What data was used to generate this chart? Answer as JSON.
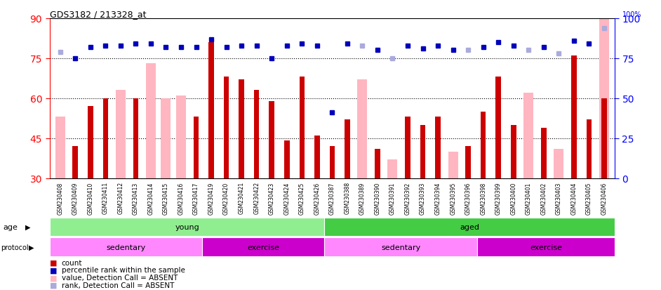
{
  "title": "GDS3182 / 213328_at",
  "samples": [
    "GSM230408",
    "GSM230409",
    "GSM230410",
    "GSM230411",
    "GSM230412",
    "GSM230413",
    "GSM230414",
    "GSM230415",
    "GSM230416",
    "GSM230417",
    "GSM230419",
    "GSM230420",
    "GSM230421",
    "GSM230422",
    "GSM230423",
    "GSM230424",
    "GSM230425",
    "GSM230426",
    "GSM230387",
    "GSM230388",
    "GSM230389",
    "GSM230390",
    "GSM230391",
    "GSM230392",
    "GSM230393",
    "GSM230394",
    "GSM230395",
    "GSM230396",
    "GSM230398",
    "GSM230399",
    "GSM230400",
    "GSM230401",
    "GSM230402",
    "GSM230403",
    "GSM230404",
    "GSM230405",
    "GSM230406"
  ],
  "red_bars": [
    null,
    42,
    57,
    60,
    null,
    60,
    null,
    null,
    null,
    53,
    81,
    68,
    67,
    63,
    59,
    44,
    68,
    46,
    42,
    52,
    null,
    41,
    null,
    53,
    50,
    53,
    null,
    42,
    55,
    68,
    50,
    null,
    49,
    null,
    76,
    52,
    60
  ],
  "pink_bars": [
    53,
    null,
    null,
    null,
    63,
    null,
    73,
    60,
    61,
    null,
    null,
    null,
    null,
    null,
    null,
    null,
    null,
    null,
    null,
    null,
    67,
    null,
    37,
    null,
    null,
    null,
    40,
    null,
    null,
    null,
    null,
    62,
    null,
    41,
    null,
    null,
    91
  ],
  "blue_dots": [
    null,
    75,
    82,
    83,
    83,
    84,
    84,
    82,
    82,
    82,
    87,
    82,
    83,
    83,
    75,
    83,
    84,
    83,
    41,
    84,
    null,
    80,
    null,
    83,
    81,
    83,
    80,
    null,
    82,
    85,
    83,
    null,
    82,
    null,
    86,
    84,
    null
  ],
  "light_blue_dots": [
    79,
    null,
    null,
    null,
    null,
    null,
    null,
    null,
    null,
    null,
    null,
    null,
    null,
    null,
    null,
    null,
    null,
    null,
    null,
    null,
    83,
    null,
    75,
    null,
    null,
    null,
    null,
    80,
    null,
    null,
    null,
    80,
    null,
    78,
    null,
    null,
    94
  ],
  "ylim_left": [
    30,
    90
  ],
  "ylim_right": [
    0,
    100
  ],
  "yticks_left": [
    30,
    45,
    60,
    75,
    90
  ],
  "yticks_right": [
    0,
    25,
    50,
    75,
    100
  ],
  "hlines": [
    45,
    60,
    75
  ],
  "age_groups": [
    {
      "label": "young",
      "start": 0,
      "end": 18,
      "color": "#90EE90"
    },
    {
      "label": "aged",
      "start": 18,
      "end": 37,
      "color": "#44CC44"
    }
  ],
  "protocol_groups": [
    {
      "label": "sedentary",
      "start": 0,
      "end": 10,
      "color": "#FF88FF"
    },
    {
      "label": "exercise",
      "start": 10,
      "end": 18,
      "color": "#CC00CC"
    },
    {
      "label": "sedentary",
      "start": 18,
      "end": 28,
      "color": "#FF88FF"
    },
    {
      "label": "exercise",
      "start": 28,
      "end": 37,
      "color": "#CC00CC"
    }
  ],
  "red_color": "#CC0000",
  "pink_color": "#FFB6C1",
  "blue_color": "#0000BB",
  "light_blue_color": "#AAAADD",
  "plot_bg": "#FFFFFF",
  "tick_area_bg": "#CCCCCC"
}
